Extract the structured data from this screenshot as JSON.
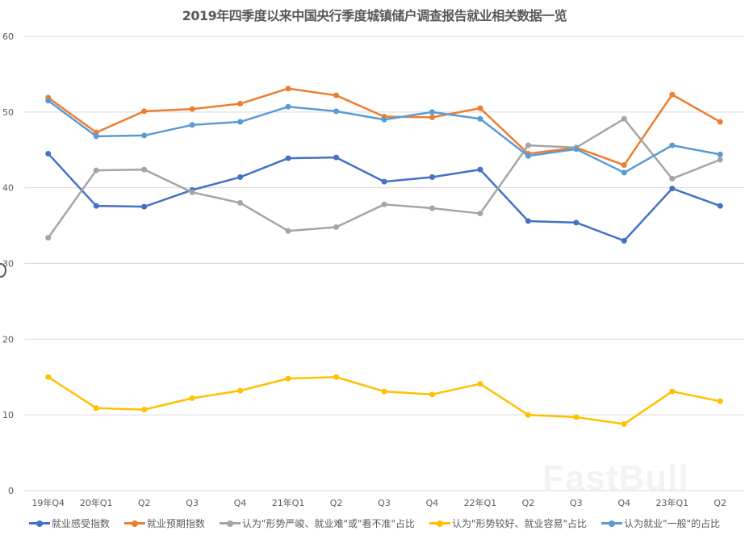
{
  "chart_data": {
    "type": "line",
    "title": "2019年四季度以来中国央行季度城镇储户调查报告就业相关数据一览",
    "xlabel": "",
    "ylabel": "",
    "ylim": [
      0,
      60
    ],
    "yticks": [
      0,
      10,
      20,
      30,
      40,
      50,
      60
    ],
    "grid": true,
    "legend_position": "bottom",
    "categories": [
      "19年Q4",
      "20年Q1",
      "Q2",
      "Q3",
      "Q4",
      "21年Q1",
      "Q2",
      "Q3",
      "Q4",
      "22年Q1",
      "Q2",
      "Q3",
      "Q4",
      "23年Q1",
      "Q2"
    ],
    "series": [
      {
        "name": "就业感受指数",
        "color": "#4472C4",
        "values": [
          44.5,
          37.6,
          37.5,
          39.7,
          41.4,
          43.9,
          44.0,
          40.8,
          41.4,
          42.4,
          35.6,
          35.4,
          33.0,
          39.9,
          37.6
        ]
      },
      {
        "name": "就业预期指数",
        "color": "#ED7D31",
        "values": [
          51.9,
          47.3,
          50.1,
          50.4,
          51.1,
          53.1,
          52.2,
          49.4,
          49.3,
          50.5,
          44.5,
          45.3,
          43.0,
          52.3,
          48.7
        ]
      },
      {
        "name": "认为\"形势严峻、就业难\"或\"看不准\"占比",
        "color": "#A5A5A5",
        "values": [
          33.4,
          42.3,
          42.4,
          39.4,
          38.0,
          34.3,
          34.8,
          37.8,
          37.3,
          36.6,
          45.6,
          45.3,
          49.1,
          41.2,
          43.7
        ]
      },
      {
        "name": "认为\"形势较好、就业容易\"占比",
        "color": "#FFC000",
        "values": [
          15.0,
          10.9,
          10.7,
          12.2,
          13.2,
          14.8,
          15.0,
          13.1,
          12.7,
          14.1,
          10.0,
          9.7,
          8.8,
          13.1,
          11.8
        ]
      },
      {
        "name": "认为就业\"一般\"的占比",
        "color": "#5B9BD5",
        "values": [
          51.5,
          46.8,
          46.9,
          48.3,
          48.7,
          50.7,
          50.1,
          49.0,
          50.0,
          49.1,
          44.2,
          45.1,
          42.0,
          45.6,
          44.4
        ]
      }
    ]
  },
  "watermark": "FastBull"
}
